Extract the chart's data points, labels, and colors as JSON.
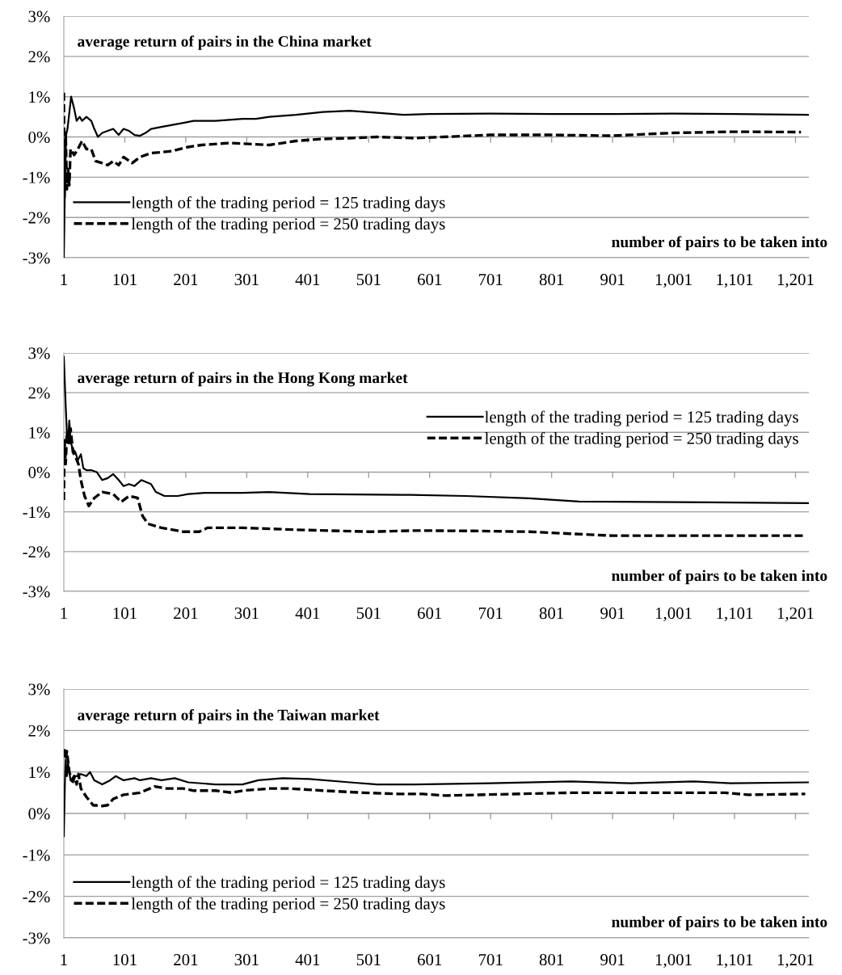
{
  "chart_data": [
    {
      "type": "line",
      "title": "average return of pairs in the China market",
      "xlabel": "number of pairs to be taken into",
      "legend": "bottom left",
      "grid": "y",
      "xlim": [
        1,
        1223
      ],
      "ylim": [
        -3,
        3
      ],
      "xticks": [
        1,
        101,
        201,
        301,
        401,
        501,
        601,
        701,
        801,
        901,
        {
          "value": 1001,
          "label": "1,001"
        },
        {
          "value": 1101,
          "label": "1,101"
        },
        {
          "value": 1201,
          "label": "1,201"
        }
      ],
      "yticks": [
        {
          "value": -3,
          "label": "-3%"
        },
        {
          "value": -2,
          "label": "-2%"
        },
        {
          "value": -1,
          "label": "-1%"
        },
        {
          "value": 0,
          "label": "0%"
        },
        {
          "value": 1,
          "label": "1%"
        },
        {
          "value": 2,
          "label": "2%"
        },
        {
          "value": 3,
          "label": "3%"
        }
      ],
      "series": [
        {
          "name": "length of the trading period = 125 trading days",
          "color": "#000000",
          "line_style": "solid",
          "x": [
            1,
            4,
            7,
            13,
            18,
            22,
            27,
            31,
            38,
            46,
            51,
            57,
            64,
            73,
            82,
            91,
            99,
            108,
            117,
            126,
            135,
            144,
            161,
            179,
            197,
            214,
            250,
            294,
            316,
            338,
            382,
            426,
            470,
            515,
            558,
            600,
            700,
            800,
            900,
            1000,
            1100,
            1223
          ],
          "values": [
            -3,
            0,
            0.2,
            1.0,
            0.7,
            0.4,
            0.5,
            0.4,
            0.5,
            0.4,
            0.2,
            0.0,
            0.1,
            0.15,
            0.2,
            0.05,
            0.2,
            0.15,
            0.05,
            0.03,
            0.1,
            0.2,
            0.25,
            0.3,
            0.35,
            0.4,
            0.4,
            0.45,
            0.45,
            0.5,
            0.55,
            0.62,
            0.65,
            0.6,
            0.55,
            0.57,
            0.58,
            0.57,
            0.57,
            0.58,
            0.57,
            0.55
          ]
        },
        {
          "name": "length of the trading period = 250 trading days",
          "color": "#000000",
          "line_style": "dashed",
          "x": [
            1,
            2,
            4,
            6,
            8,
            10,
            12,
            18,
            24,
            31,
            38,
            46,
            53,
            64,
            73,
            82,
            91,
            99,
            113,
            126,
            144,
            161,
            179,
            205,
            227,
            272,
            338,
            382,
            426,
            470,
            515,
            576,
            700,
            800,
            900,
            1000,
            1100,
            1210
          ],
          "values": [
            1.1,
            -1.5,
            0.1,
            -1.3,
            -0.8,
            -1.2,
            -0.3,
            -0.45,
            -0.3,
            -0.1,
            -0.3,
            -0.3,
            -0.6,
            -0.65,
            -0.7,
            -0.6,
            -0.7,
            -0.5,
            -0.65,
            -0.5,
            -0.4,
            -0.38,
            -0.35,
            -0.25,
            -0.2,
            -0.15,
            -0.2,
            -0.1,
            -0.05,
            -0.03,
            0,
            -0.03,
            0.05,
            0.05,
            0.03,
            0.1,
            0.13,
            0.12
          ]
        }
      ]
    },
    {
      "type": "line",
      "title": "average return of pairs in the Hong Kong market",
      "xlabel": "number of pairs to be taken into",
      "legend": "top right",
      "grid": "y",
      "xlim": [
        1,
        1223
      ],
      "ylim": [
        -3,
        3
      ],
      "xticks": [
        1,
        101,
        201,
        301,
        401,
        501,
        601,
        701,
        801,
        901,
        {
          "value": 1001,
          "label": "1,001"
        },
        {
          "value": 1101,
          "label": "1,101"
        },
        {
          "value": 1201,
          "label": "1,201"
        }
      ],
      "yticks": [
        {
          "value": -3,
          "label": "-3%"
        },
        {
          "value": -2,
          "label": "-2%"
        },
        {
          "value": -1,
          "label": "-1%"
        },
        {
          "value": 0,
          "label": "0%"
        },
        {
          "value": 1,
          "label": "1%"
        },
        {
          "value": 2,
          "label": "2%"
        },
        {
          "value": 3,
          "label": "3%"
        }
      ],
      "series": [
        {
          "name": "length of the trading period = 125 trading days",
          "color": "#000000",
          "line_style": "solid",
          "x": [
            1,
            4,
            6,
            8,
            10,
            12,
            15,
            20,
            24,
            29,
            33,
            38,
            46,
            55,
            64,
            73,
            82,
            91,
            99,
            108,
            117,
            128,
            144,
            152,
            166,
            188,
            205,
            232,
            294,
            338,
            404,
            558,
            660,
            764,
            846,
            1061,
            1223
          ],
          "values": [
            2.9,
            1.7,
            1.0,
            0.8,
            1.3,
            0.8,
            0.6,
            0.5,
            0.3,
            0.45,
            0.1,
            0.05,
            0.05,
            0.0,
            -0.2,
            -0.15,
            -0.05,
            -0.2,
            -0.35,
            -0.3,
            -0.35,
            -0.2,
            -0.3,
            -0.5,
            -0.6,
            -0.6,
            -0.55,
            -0.52,
            -0.52,
            -0.5,
            -0.55,
            -0.57,
            -0.6,
            -0.66,
            -0.74,
            -0.76,
            -0.78
          ]
        },
        {
          "name": "length of the trading period = 250 trading days",
          "color": "#000000",
          "line_style": "dashed",
          "x": [
            1,
            2,
            4,
            6,
            9,
            12,
            16,
            20,
            25,
            29,
            35,
            42,
            51,
            64,
            82,
            95,
            108,
            122,
            130,
            139,
            161,
            197,
            223,
            237,
            294,
            382,
            505,
            576,
            673,
            764,
            832,
            902,
            1217
          ],
          "values": [
            -0.7,
            0.8,
            0.2,
            1.0,
            0.7,
            1.1,
            0.5,
            0.4,
            0.2,
            -0.2,
            -0.6,
            -0.85,
            -0.65,
            -0.5,
            -0.55,
            -0.75,
            -0.6,
            -0.65,
            -1.1,
            -1.3,
            -1.4,
            -1.5,
            -1.5,
            -1.4,
            -1.4,
            -1.45,
            -1.5,
            -1.47,
            -1.48,
            -1.5,
            -1.55,
            -1.6,
            -1.6
          ]
        }
      ]
    },
    {
      "type": "line",
      "title": "average return of pairs in the Taiwan market",
      "xlabel": "number of pairs to be taken into",
      "legend": "bottom left",
      "grid": "y",
      "xlim": [
        1,
        1223
      ],
      "ylim": [
        -3,
        3
      ],
      "xticks": [
        1,
        101,
        201,
        301,
        401,
        501,
        601,
        701,
        801,
        901,
        {
          "value": 1001,
          "label": "1,001"
        },
        {
          "value": 1101,
          "label": "1,101"
        },
        {
          "value": 1201,
          "label": "1,201"
        }
      ],
      "yticks": [
        {
          "value": -3,
          "label": "-3%"
        },
        {
          "value": -2,
          "label": "-2%"
        },
        {
          "value": -1,
          "label": "-1%"
        },
        {
          "value": 0,
          "label": "0%"
        },
        {
          "value": 1,
          "label": "1%"
        },
        {
          "value": 2,
          "label": "2%"
        },
        {
          "value": 3,
          "label": "3%"
        }
      ],
      "series": [
        {
          "name": "length of the trading period = 125 trading days",
          "color": "#000000",
          "line_style": "solid",
          "x": [
            1,
            2,
            3,
            4,
            6,
            8,
            12,
            16,
            20,
            24,
            29,
            38,
            44,
            51,
            64,
            77,
            86,
            99,
            117,
            126,
            144,
            161,
            183,
            205,
            250,
            294,
            320,
            360,
            404,
            470,
            515,
            576,
            700,
            833,
            930,
            1034,
            1095,
            1223
          ],
          "values": [
            -0.55,
            0.2,
            0.9,
            1.3,
            0.9,
            1.2,
            0.8,
            0.75,
            0.9,
            0.9,
            0.95,
            0.9,
            1.0,
            0.8,
            0.7,
            0.8,
            0.9,
            0.8,
            0.85,
            0.8,
            0.85,
            0.8,
            0.85,
            0.75,
            0.7,
            0.7,
            0.8,
            0.85,
            0.83,
            0.75,
            0.7,
            0.7,
            0.73,
            0.77,
            0.73,
            0.77,
            0.73,
            0.75
          ]
        },
        {
          "name": "length of the trading period = 250 trading days",
          "color": "#000000",
          "line_style": "dashed",
          "x": [
            2,
            4,
            6,
            10,
            14,
            18,
            22,
            25,
            29,
            38,
            49,
            64,
            73,
            82,
            99,
            126,
            150,
            170,
            197,
            214,
            250,
            276,
            294,
            338,
            373,
            426,
            492,
            550,
            590,
            627,
            833,
            1085,
            1123,
            1217
          ],
          "values": [
            1.55,
            1.3,
            1.5,
            1.0,
            0.8,
            0.9,
            0.7,
            0.95,
            0.6,
            0.4,
            0.2,
            0.18,
            0.2,
            0.35,
            0.45,
            0.5,
            0.65,
            0.6,
            0.6,
            0.55,
            0.55,
            0.5,
            0.55,
            0.6,
            0.6,
            0.55,
            0.5,
            0.47,
            0.47,
            0.43,
            0.5,
            0.5,
            0.45,
            0.47
          ]
        }
      ]
    }
  ]
}
